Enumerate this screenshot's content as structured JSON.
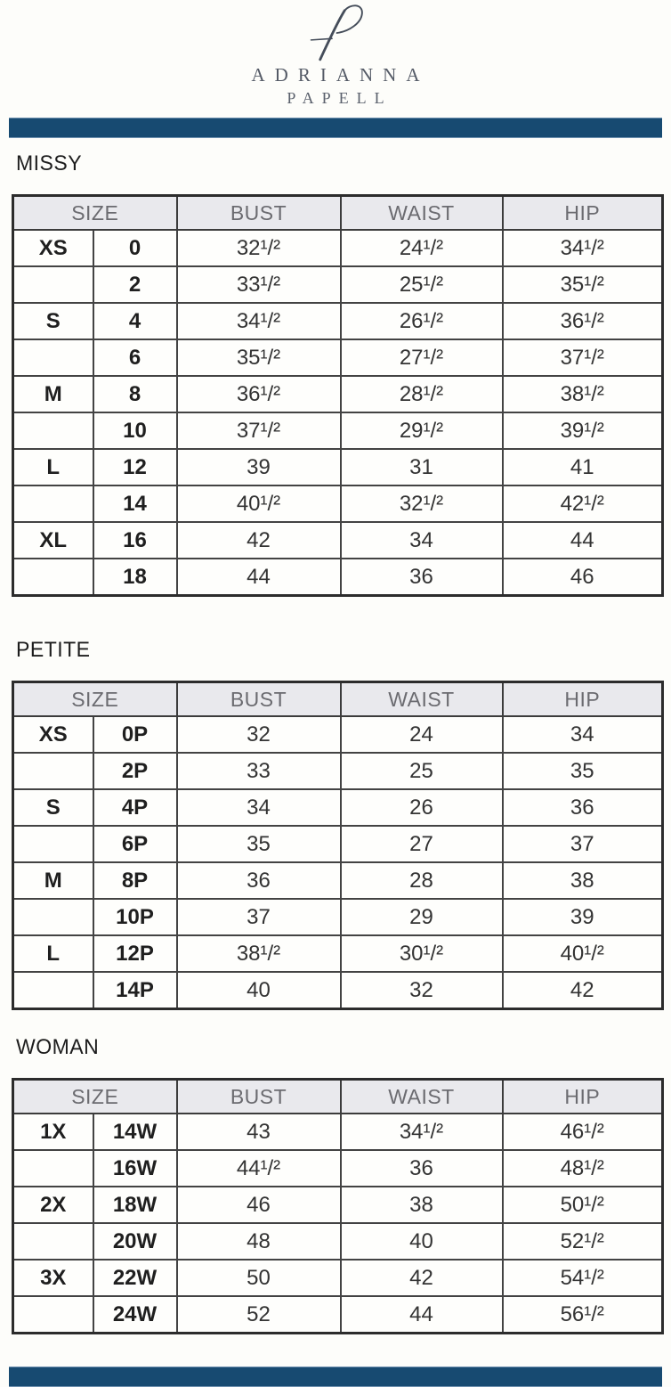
{
  "brand": {
    "monogram": "AP",
    "line1": "ADRIANNA",
    "line2": "PAPELL"
  },
  "colors": {
    "bar_navy": "#174a71",
    "table_header_bg": "#e9e9ed",
    "table_border": "#3c3c3c",
    "header_text": "#6b6b70",
    "body_text": "#303030",
    "brand_text": "#545a66"
  },
  "columns": [
    "SIZE",
    "BUST",
    "WAIST",
    "HIP"
  ],
  "sections": [
    {
      "label": "MISSY",
      "rows": [
        {
          "letter": "XS",
          "size": "0",
          "bust": "32¹/²",
          "waist": "24¹/²",
          "hip": "34¹/²"
        },
        {
          "letter": "",
          "size": "2",
          "bust": "33¹/²",
          "waist": "25¹/²",
          "hip": "35¹/²"
        },
        {
          "letter": "S",
          "size": "4",
          "bust": "34¹/²",
          "waist": "26¹/²",
          "hip": "36¹/²"
        },
        {
          "letter": "",
          "size": "6",
          "bust": "35¹/²",
          "waist": "27¹/²",
          "hip": "37¹/²"
        },
        {
          "letter": "M",
          "size": "8",
          "bust": "36¹/²",
          "waist": "28¹/²",
          "hip": "38¹/²"
        },
        {
          "letter": "",
          "size": "10",
          "bust": "37¹/²",
          "waist": "29¹/²",
          "hip": "39¹/²"
        },
        {
          "letter": "L",
          "size": "12",
          "bust": "39",
          "waist": "31",
          "hip": "41"
        },
        {
          "letter": "",
          "size": "14",
          "bust": "40¹/²",
          "waist": "32¹/²",
          "hip": "42¹/²"
        },
        {
          "letter": "XL",
          "size": "16",
          "bust": "42",
          "waist": "34",
          "hip": "44"
        },
        {
          "letter": "",
          "size": "18",
          "bust": "44",
          "waist": "36",
          "hip": "46"
        }
      ]
    },
    {
      "label": "PETITE",
      "rows": [
        {
          "letter": "XS",
          "size": "0P",
          "bust": "32",
          "waist": "24",
          "hip": "34"
        },
        {
          "letter": "",
          "size": "2P",
          "bust": "33",
          "waist": "25",
          "hip": "35"
        },
        {
          "letter": "S",
          "size": "4P",
          "bust": "34",
          "waist": "26",
          "hip": "36"
        },
        {
          "letter": "",
          "size": "6P",
          "bust": "35",
          "waist": "27",
          "hip": "37"
        },
        {
          "letter": "M",
          "size": "8P",
          "bust": "36",
          "waist": "28",
          "hip": "38"
        },
        {
          "letter": "",
          "size": "10P",
          "bust": "37",
          "waist": "29",
          "hip": "39"
        },
        {
          "letter": "L",
          "size": "12P",
          "bust": "38¹/²",
          "waist": "30¹/²",
          "hip": "40¹/²"
        },
        {
          "letter": "",
          "size": "14P",
          "bust": "40",
          "waist": "32",
          "hip": "42"
        }
      ]
    },
    {
      "label": "WOMAN",
      "rows": [
        {
          "letter": "1X",
          "size": "14W",
          "bust": "43",
          "waist": "34¹/²",
          "hip": "46¹/²"
        },
        {
          "letter": "",
          "size": "16W",
          "bust": "44¹/²",
          "waist": "36",
          "hip": "48¹/²"
        },
        {
          "letter": "2X",
          "size": "18W",
          "bust": "46",
          "waist": "38",
          "hip": "50¹/²"
        },
        {
          "letter": "",
          "size": "20W",
          "bust": "48",
          "waist": "40",
          "hip": "52¹/²"
        },
        {
          "letter": "3X",
          "size": "22W",
          "bust": "50",
          "waist": "42",
          "hip": "54¹/²"
        },
        {
          "letter": "",
          "size": "24W",
          "bust": "52",
          "waist": "44",
          "hip": "56¹/²"
        }
      ]
    }
  ]
}
